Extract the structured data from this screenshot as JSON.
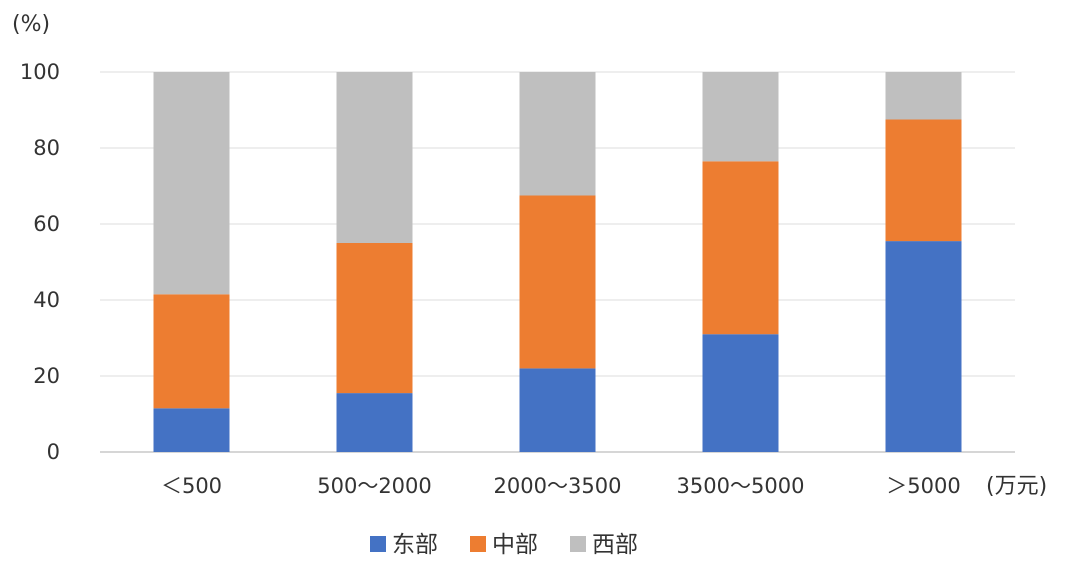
{
  "chart_data": {
    "type": "bar",
    "stacked": true,
    "y_unit_label": "(%)",
    "x_unit_label": "(万元)",
    "categories": [
      "＜500",
      "500～2000",
      "2000～3500",
      "3500～5000",
      "＞5000"
    ],
    "series": [
      {
        "name": "东部",
        "color": "#4472C4",
        "values": [
          11.5,
          15.5,
          22,
          31,
          55.5
        ]
      },
      {
        "name": "中部",
        "color": "#ED7D31",
        "values": [
          30,
          39.5,
          45.5,
          45.5,
          32
        ]
      },
      {
        "name": "西部",
        "color": "#BFBFBF",
        "values": [
          58.5,
          45,
          32.5,
          23.5,
          12.5
        ]
      }
    ],
    "ylim": [
      0,
      100
    ],
    "yticks": [
      "0",
      "20",
      "40",
      "60",
      "80",
      "100"
    ],
    "grid": true,
    "legend_position": "bottom"
  }
}
